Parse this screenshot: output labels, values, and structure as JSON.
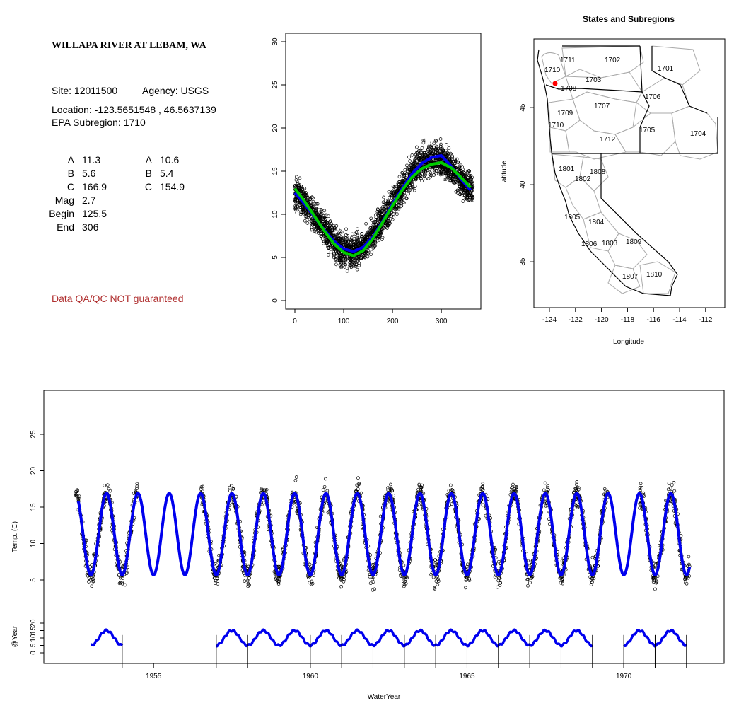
{
  "info": {
    "title": "WILLAPA RIVER AT LEBAM, WA",
    "site_label": "Site: 12011500",
    "agency_label": "Agency: USGS",
    "location_label": "Location: -123.5651548 , 46.5637139",
    "subregion_label": "EPA Subregion: 1710",
    "params_left": [
      {
        "label": "A",
        "value": "11.3"
      },
      {
        "label": "B",
        "value": "5.6"
      },
      {
        "label": "C",
        "value": "166.9"
      },
      {
        "label": "Mag",
        "value": "2.7"
      },
      {
        "label": "Begin",
        "value": "125.5"
      },
      {
        "label": "End",
        "value": "306"
      }
    ],
    "params_right": [
      {
        "label": "A",
        "value": "10.6"
      },
      {
        "label": "B",
        "value": "5.4"
      },
      {
        "label": "C",
        "value": "154.9"
      }
    ],
    "disclaimer": "Data QA/QC NOT guaranteed"
  },
  "colors": {
    "fit_blue": "#0000ee",
    "fit_green": "#00cc00",
    "site_dot": "#ff0000",
    "disclaimer": "#b03030",
    "boundary_gray": "#aaaaaa"
  },
  "chart_data": [
    {
      "type": "scatter",
      "xlim": [
        0,
        365
      ],
      "ylim": [
        0,
        30
      ],
      "x_ticks": [
        0,
        100,
        200,
        300
      ],
      "y_ticks": [
        0,
        5,
        10,
        15,
        20,
        25,
        30
      ],
      "series": [
        {
          "style": "points",
          "x": [
            0,
            10,
            20,
            30,
            40,
            50,
            60,
            70,
            80,
            90,
            100,
            110,
            120,
            130,
            140,
            150,
            160,
            170,
            180,
            190,
            200,
            210,
            220,
            230,
            240,
            250,
            260,
            270,
            280,
            290,
            300,
            310,
            320,
            330,
            340,
            350,
            360
          ],
          "y": [
            12.5,
            12.0,
            11.3,
            10.5,
            9.8,
            9.0,
            8.2,
            7.5,
            6.8,
            6.2,
            5.8,
            5.6,
            5.7,
            6.0,
            6.4,
            6.9,
            7.6,
            8.4,
            9.3,
            10.2,
            11.2,
            12.1,
            13.0,
            13.9,
            14.7,
            15.3,
            15.9,
            16.3,
            16.5,
            16.5,
            16.3,
            15.9,
            15.4,
            14.8,
            14.1,
            13.4,
            12.8
          ]
        },
        {
          "style": "line",
          "color": "blue",
          "x": [
            0,
            20,
            40,
            60,
            80,
            100,
            120,
            140,
            160,
            180,
            200,
            220,
            240,
            260,
            280,
            300,
            320,
            340,
            360
          ],
          "y": [
            12.5,
            11.2,
            9.7,
            8.2,
            6.9,
            6.0,
            5.7,
            6.2,
            7.4,
            9.2,
            11.2,
            13.0,
            14.7,
            15.9,
            16.6,
            16.8,
            15.6,
            14.1,
            12.8
          ]
        },
        {
          "style": "line",
          "color": "green",
          "x": [
            0,
            20,
            40,
            60,
            80,
            100,
            120,
            140,
            160,
            180,
            200,
            220,
            240,
            260,
            280,
            300,
            320,
            340,
            360
          ],
          "y": [
            13.0,
            11.5,
            9.8,
            8.1,
            6.6,
            5.6,
            5.2,
            5.8,
            7.2,
            9.1,
            11.0,
            12.8,
            14.3,
            15.3,
            15.8,
            16.0,
            15.4,
            14.3,
            13.1
          ]
        }
      ]
    },
    {
      "type": "map",
      "title": "States and Subregions",
      "xlabel": "Longitude",
      "ylabel": "Latitude",
      "x_ticks": [
        -124,
        -122,
        -120,
        -118,
        -116,
        -114,
        -112
      ],
      "y_ticks": [
        35,
        40,
        45
      ],
      "subregion_labels": [
        "1711",
        "1702",
        "1701",
        "1710",
        "1703",
        "1708",
        "1706",
        "1707",
        "1709",
        "1705",
        "1704",
        "1710",
        "1712",
        "1801",
        "1808",
        "1802",
        "1805",
        "1804",
        "1806",
        "1803",
        "1809",
        "1807",
        "1810"
      ],
      "site_point": {
        "lon": -123.565,
        "lat": 46.564
      }
    },
    {
      "type": "scatter",
      "xlabel": "WaterYear",
      "ylabel": "Temp. (C)",
      "xlim": [
        1951.5,
        1973.2
      ],
      "ylim": [
        0,
        30
      ],
      "x_ticks": [
        1955,
        1960,
        1965,
        1970
      ],
      "y_ticks": [
        5,
        10,
        15,
        20,
        25
      ],
      "fit": {
        "mean": 11.3,
        "amplitude": 5.6,
        "phase_day": 166.9
      },
      "observed_years": [
        1953,
        1954,
        1957,
        1958,
        1959,
        1960,
        1961,
        1962,
        1963,
        1964,
        1965,
        1966,
        1967,
        1968,
        1969,
        1971,
        1972
      ]
    },
    {
      "type": "line",
      "ylabel": "@Year",
      "y_ticks": [
        0,
        5,
        10,
        15,
        20
      ],
      "segments": [
        [
          1953.0,
          1954.0
        ],
        [
          1957.0,
          1969.0
        ],
        [
          1970.0,
          1972.0
        ]
      ],
      "year_marks": [
        1953,
        1954,
        1957,
        1958,
        1959,
        1960,
        1961,
        1962,
        1963,
        1964,
        1965,
        1966,
        1967,
        1968,
        1969,
        1970,
        1971,
        1972
      ]
    }
  ]
}
